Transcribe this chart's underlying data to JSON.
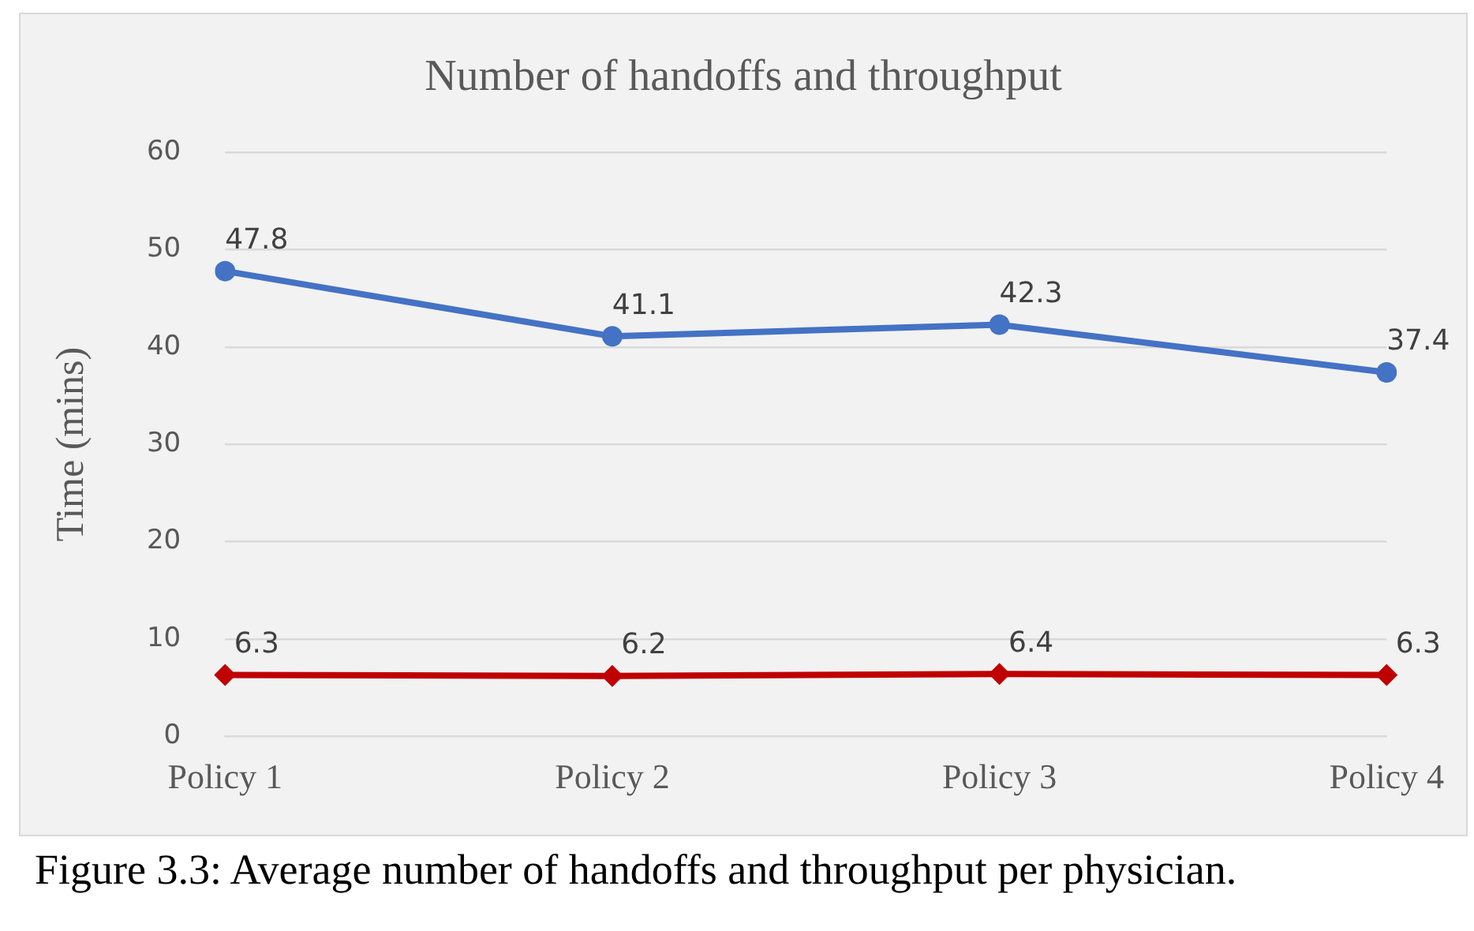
{
  "chart_data": {
    "type": "line",
    "title": "Number of handoffs and throughput",
    "ylabel": "Time (mins)",
    "categories": [
      "Policy 1",
      "Policy 2",
      "Policy 3",
      "Policy 4"
    ],
    "series": [
      {
        "color": "#4472c4",
        "values": [
          47.8,
          41.1,
          42.3,
          37.4
        ],
        "marker": "circle"
      },
      {
        "color": "#c00000",
        "values": [
          6.3,
          6.2,
          6.4,
          6.3
        ],
        "marker": "diamond"
      }
    ],
    "ylim": [
      0,
      60
    ],
    "yticks": [
      0,
      10,
      20,
      30,
      40,
      50,
      60
    ],
    "grid": "y",
    "legend": false,
    "data_labels": true,
    "line_style": "solid",
    "annotations": [
      "Figure 3.3: Average number of handoffs and throughput per physician."
    ]
  }
}
